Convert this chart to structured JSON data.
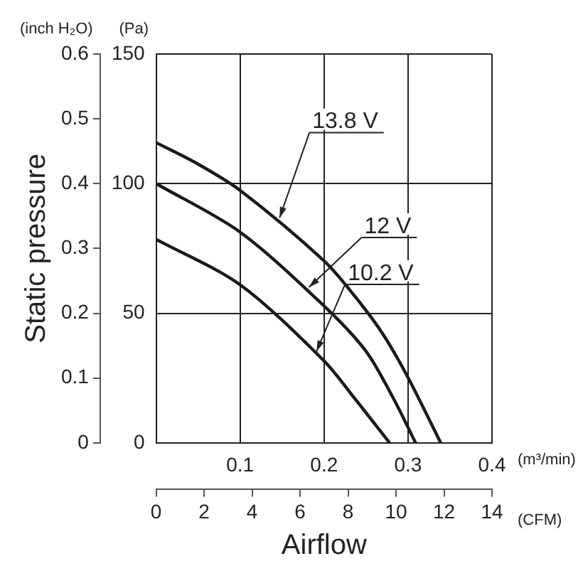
{
  "chart_data": {
    "type": "line",
    "y2label": "Static pressure",
    "x2label": "Airflow",
    "xlim": [
      0,
      0.4
    ],
    "xticks": [
      {
        "value": 0,
        "label": null
      },
      0.1,
      0.2,
      0.3,
      0.4
    ],
    "x2lim": [
      0,
      14
    ],
    "x2ticks": [
      0,
      2,
      4,
      6,
      8,
      10,
      12,
      14
    ],
    "ylim": [
      0,
      150
    ],
    "yticks": [
      0,
      50,
      100,
      150
    ],
    "y2lim": [
      0,
      0.6
    ],
    "y2ticks": [
      0,
      0.1,
      0.2,
      0.3,
      0.4,
      0.5,
      0.6
    ],
    "grid": true,
    "legend": false,
    "marker": "none",
    "line_style": "solid",
    "series": [
      {
        "color": "#1a1a1a",
        "x": [
          0,
          0.048,
          0.1,
          0.2,
          0.237,
          0.27,
          0.3,
          0.339
        ],
        "values": [
          115.8,
          107.9,
          97.4,
          70.2,
          56.4,
          42,
          25.2,
          0
        ]
      },
      {
        "color": "#1a1a1a",
        "x": [
          0,
          0.1,
          0.2,
          0.25,
          0.283,
          0.309
        ],
        "values": [
          100,
          81.3,
          52.8,
          35.3,
          16.9,
          0
        ]
      },
      {
        "color": "#1a1a1a",
        "x": [
          0,
          0.1,
          0.2,
          0.237,
          0.278
        ],
        "values": [
          78.5,
          61,
          31.6,
          16.9,
          0
        ]
      }
    ],
    "annotations": [
      "(inch H₂O)",
      "(Pa)",
      "(m³/min)",
      "(CFM)",
      {
        "text": "13.8 V",
        "x": 0.147,
        "y": 86.8
      },
      {
        "text": "12 V",
        "x": 0.182,
        "y": 60
      },
      {
        "text": "10.2 V",
        "x": 0.191,
        "y": 35.3
      }
    ]
  }
}
